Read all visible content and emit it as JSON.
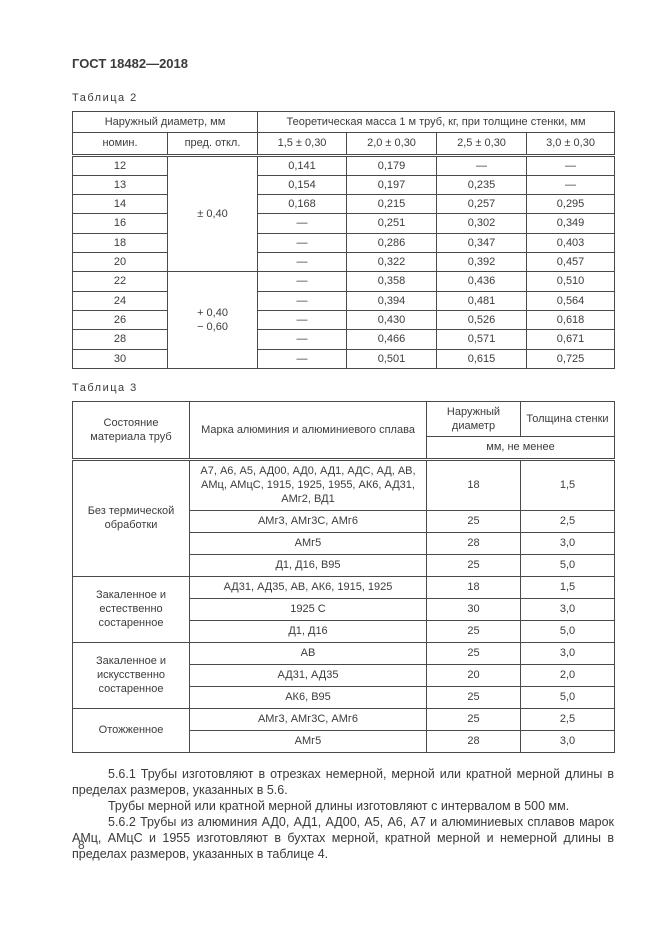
{
  "page": {
    "doc_header": "ГОСТ 18482—2018",
    "page_number": "8"
  },
  "table2": {
    "caption": "Таблица 2",
    "header": {
      "outer_diameter": "Наружный диаметр, мм",
      "nominal": "номин.",
      "deviation": "пред. откл.",
      "mass_title": "Теоретическая масса 1 м труб, кг, при толщине стенки, мм",
      "thickness_cols": [
        "1,5 ± 0,30",
        "2,0 ± 0,30",
        "2,5 ± 0,30",
        "3,0 ± 0,30"
      ]
    },
    "groups": [
      {
        "deviation": "± 0,40",
        "rows": [
          {
            "nominal": "12",
            "values": [
              "0,141",
              "0,179",
              "—",
              "—"
            ]
          },
          {
            "nominal": "13",
            "values": [
              "0,154",
              "0,197",
              "0,235",
              "—"
            ]
          },
          {
            "nominal": "14",
            "values": [
              "0,168",
              "0,215",
              "0,257",
              "0,295"
            ]
          },
          {
            "nominal": "16",
            "values": [
              "—",
              "0,251",
              "0,302",
              "0,349"
            ]
          },
          {
            "nominal": "18",
            "values": [
              "—",
              "0,286",
              "0,347",
              "0,403"
            ]
          },
          {
            "nominal": "20",
            "values": [
              "—",
              "0,322",
              "0,392",
              "0,457"
            ]
          }
        ]
      },
      {
        "deviation": "+ 0,40\n− 0,60",
        "rows": [
          {
            "nominal": "22",
            "values": [
              "—",
              "0,358",
              "0,436",
              "0,510"
            ]
          },
          {
            "nominal": "24",
            "values": [
              "—",
              "0,394",
              "0,481",
              "0,564"
            ]
          },
          {
            "nominal": "26",
            "values": [
              "—",
              "0,430",
              "0,526",
              "0,618"
            ]
          },
          {
            "nominal": "28",
            "values": [
              "—",
              "0,466",
              "0,571",
              "0,671"
            ]
          },
          {
            "nominal": "30",
            "values": [
              "—",
              "0,501",
              "0,615",
              "0,725"
            ]
          }
        ]
      }
    ]
  },
  "table3": {
    "caption": "Таблица 3",
    "header": {
      "state": "Состояние материала труб",
      "grade": "Марка алюминия и алюминиевого сплава",
      "outer_diameter": "Наружный диаметр",
      "wall_thickness": "Толщина стенки",
      "units": "мм, не менее"
    },
    "groups": [
      {
        "state": "Без термической обработки",
        "rows": [
          {
            "grade": "А7, А6, А5, АД00, АД0, АД1, АДС, АД, АВ, АМц, АМцС, 1915, 1925, 1955, АК6, АД31, АМг2, ВД1",
            "diameter": "18",
            "thickness": "1,5"
          },
          {
            "grade": "АМг3, АМг3С, АМг6",
            "diameter": "25",
            "thickness": "2,5"
          },
          {
            "grade": "АМг5",
            "diameter": "28",
            "thickness": "3,0"
          },
          {
            "grade": "Д1, Д16, В95",
            "diameter": "25",
            "thickness": "5,0"
          }
        ]
      },
      {
        "state": "Закаленное и естественно состаренное",
        "rows": [
          {
            "grade": "АД31, АД35, АВ, АК6, 1915, 1925",
            "diameter": "18",
            "thickness": "1,5"
          },
          {
            "grade": "1925 С",
            "diameter": "30",
            "thickness": "3,0"
          },
          {
            "grade": "Д1, Д16",
            "diameter": "25",
            "thickness": "5,0"
          }
        ]
      },
      {
        "state": "Закаленное и искусственно состаренное",
        "rows": [
          {
            "grade": "АВ",
            "diameter": "25",
            "thickness": "3,0"
          },
          {
            "grade": "АД31, АД35",
            "diameter": "20",
            "thickness": "2,0"
          },
          {
            "grade": "АК6, В95",
            "diameter": "25",
            "thickness": "5,0"
          }
        ]
      },
      {
        "state": "Отожженное",
        "rows": [
          {
            "grade": "АМг3, АМг3С, АМг6",
            "diameter": "25",
            "thickness": "2,5"
          },
          {
            "grade": "АМг5",
            "diameter": "28",
            "thickness": "3,0"
          }
        ]
      }
    ]
  },
  "paragraphs": [
    "5.6.1 Трубы изготовляют в отрезках немерной, мерной или кратной мерной длины в пределах размеров, указанных в 5.6.",
    "Трубы мерной или кратной мерной длины изготовляют с интервалом в 500 мм.",
    "5.6.2 Трубы из алюминия АД0, АД1, АД00, А5, А6, А7 и алюминиевых сплавов марок АМц, АМцС и 1955 изготовляют в бухтах мерной, кратной мерной и немерной длины в пределах размеров, указанных в таблице 4."
  ]
}
